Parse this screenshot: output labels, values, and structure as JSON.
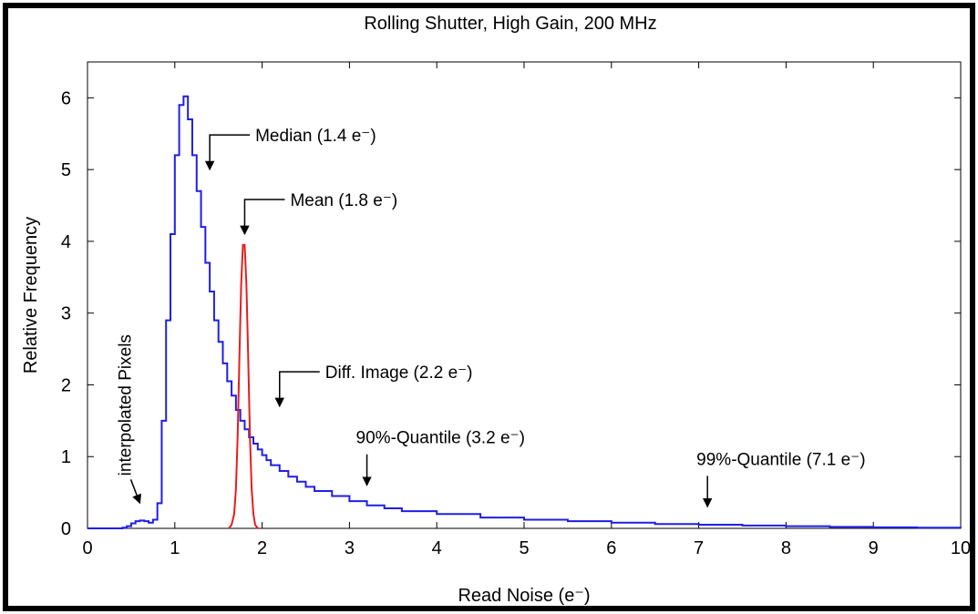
{
  "chart_data": {
    "type": "line",
    "title": "Rolling Shutter, High Gain, 200 MHz",
    "xlabel": "Read Noise (e⁻)",
    "ylabel": "Relative Frequency",
    "xlim": [
      0,
      10
    ],
    "ylim": [
      0,
      6.5
    ],
    "x_ticks": [
      0,
      1,
      2,
      3,
      4,
      5,
      6,
      7,
      8,
      9,
      10
    ],
    "x_tick_labels": [
      "0",
      "1",
      "2",
      "3",
      "4",
      "5",
      "6",
      "7",
      "8",
      "9",
      "10"
    ],
    "y_ticks": [
      0,
      1,
      2,
      3,
      4,
      5,
      6
    ],
    "y_tick_labels": [
      "0",
      "1",
      "2",
      "3",
      "4",
      "5",
      "6"
    ],
    "grid": false,
    "legend": "none",
    "series": [
      {
        "color": "#1f1fe6",
        "style": "step",
        "x": [
          0,
          0.4,
          0.45,
          0.5,
          0.55,
          0.6,
          0.65,
          0.7,
          0.75,
          0.8,
          0.85,
          0.9,
          0.95,
          1.0,
          1.05,
          1.1,
          1.15,
          1.2,
          1.25,
          1.3,
          1.35,
          1.4,
          1.45,
          1.5,
          1.55,
          1.6,
          1.65,
          1.7,
          1.75,
          1.8,
          1.85,
          1.9,
          1.95,
          2.0,
          2.05,
          2.1,
          2.2,
          2.3,
          2.4,
          2.5,
          2.6,
          2.8,
          3.0,
          3.2,
          3.4,
          3.6,
          4.0,
          4.5,
          5.0,
          5.5,
          6.0,
          6.5,
          7.0,
          7.5,
          8.0,
          8.5,
          9.0,
          9.5,
          10.0
        ],
        "y": [
          0,
          0.01,
          0.03,
          0.07,
          0.1,
          0.11,
          0.1,
          0.08,
          0.12,
          0.35,
          1.5,
          2.9,
          4.1,
          5.2,
          5.9,
          6.02,
          5.7,
          5.2,
          4.7,
          4.2,
          3.7,
          3.3,
          2.9,
          2.6,
          2.3,
          2.05,
          1.85,
          1.65,
          1.5,
          1.38,
          1.27,
          1.18,
          1.1,
          1.02,
          0.95,
          0.88,
          0.8,
          0.72,
          0.65,
          0.58,
          0.52,
          0.45,
          0.38,
          0.32,
          0.28,
          0.24,
          0.2,
          0.15,
          0.12,
          0.1,
          0.08,
          0.06,
          0.05,
          0.04,
          0.03,
          0.02,
          0.015,
          0.01,
          0.005
        ]
      },
      {
        "color": "#e61e1e",
        "style": "line",
        "x": [
          1.62,
          1.65,
          1.68,
          1.7,
          1.72,
          1.74,
          1.76,
          1.78,
          1.8,
          1.82,
          1.84,
          1.86,
          1.88,
          1.9,
          1.92,
          1.95
        ],
        "y": [
          0,
          0.05,
          0.2,
          0.55,
          1.3,
          2.4,
          3.4,
          3.95,
          3.95,
          3.4,
          2.4,
          1.3,
          0.55,
          0.2,
          0.05,
          0
        ]
      }
    ],
    "annotations": [
      {
        "label": "Median (1.4 e⁻)",
        "x": 1.4,
        "y": 5.0,
        "arrow": "elbow"
      },
      {
        "label": "Mean (1.8 e⁻)",
        "x": 1.8,
        "y": 4.1,
        "arrow": "elbow"
      },
      {
        "label": "Diff. Image (2.2 e⁻)",
        "x": 2.2,
        "y": 1.7,
        "arrow": "elbow"
      },
      {
        "label": "90%-Quantile (3.2 e⁻)",
        "x": 3.2,
        "y": 0.6,
        "arrow": "down"
      },
      {
        "label": "99%-Quantile (7.1 e⁻)",
        "x": 7.1,
        "y": 0.3,
        "arrow": "down"
      },
      {
        "label": "interpolated Pixels",
        "x": 0.6,
        "y": 0.25,
        "arrow": "diagonal"
      }
    ]
  }
}
